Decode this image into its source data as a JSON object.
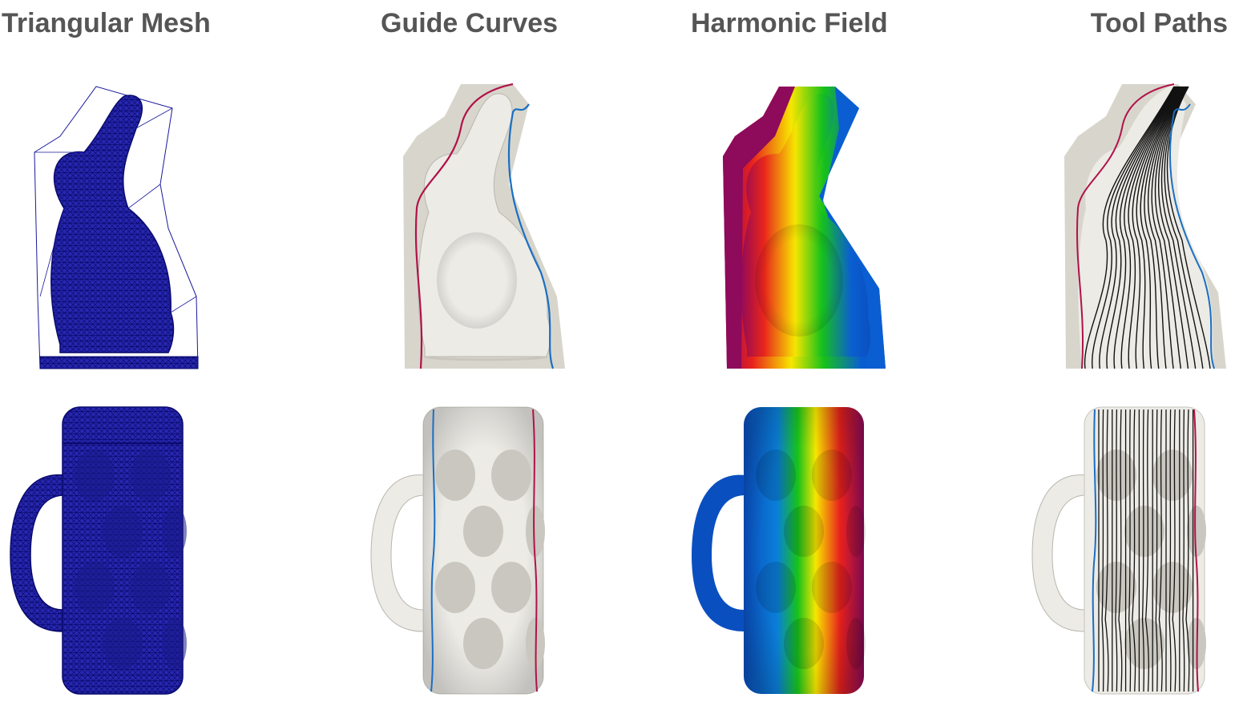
{
  "columns": [
    {
      "id": "mesh",
      "title": "Triangular Mesh"
    },
    {
      "id": "guide",
      "title": "Guide Curves"
    },
    {
      "id": "field",
      "title": "Harmonic Field"
    },
    {
      "id": "paths",
      "title": "Tool Paths"
    }
  ],
  "rows": [
    {
      "id": "bunny",
      "model": "bunny-mold"
    },
    {
      "id": "mug",
      "model": "beer-mug"
    }
  ],
  "colors": {
    "title_text": "#555555",
    "mesh": "#1a1a9c",
    "surface": "#ecebe6",
    "mold_base": "#d8d6cc",
    "curve_red": "#b0124a",
    "curve_blue": "#1a6fc4",
    "tool_path": "#111111",
    "field_gradient": [
      "#8e0a5a",
      "#e8211c",
      "#f7e600",
      "#17c21a",
      "#0a5ed1"
    ]
  }
}
